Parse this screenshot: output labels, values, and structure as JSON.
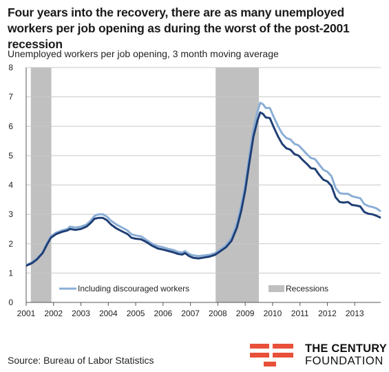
{
  "chart_data": {
    "type": "line",
    "title": "Four years into the recovery, there are as many unemployed workers per job opening as during the worst of the post-2001 recession",
    "subtitle": "Unemployed workers per job opening, 3 month moving average",
    "source": "Source: Bureau of Labor Statistics",
    "xlim": [
      2001,
      2013.95
    ],
    "ylim": [
      0,
      8
    ],
    "x_ticks": [
      "2001",
      "2002",
      "2003",
      "2004",
      "2005",
      "2006",
      "2007",
      "2008",
      "2009",
      "2010",
      "2011",
      "2012",
      "2013"
    ],
    "y_ticks": [
      "0",
      "1",
      "2",
      "3",
      "4",
      "5",
      "6",
      "7",
      "8"
    ],
    "grid": "horizontal",
    "legend_position": "bottom",
    "recessions": [
      {
        "start": 2001.17,
        "end": 2001.92
      },
      {
        "start": 2007.92,
        "end": 2009.5
      }
    ],
    "legend": {
      "discouraged_label": "Including discouraged workers",
      "recession_label": "Recessions"
    },
    "series": [
      {
        "color": "#8aaed6",
        "points": [
          [
            2001.0,
            1.27
          ],
          [
            2001.2,
            1.36
          ],
          [
            2001.4,
            1.5
          ],
          [
            2001.6,
            1.7
          ],
          [
            2001.75,
            2.0
          ],
          [
            2001.9,
            2.25
          ],
          [
            2002.1,
            2.38
          ],
          [
            2002.3,
            2.45
          ],
          [
            2002.5,
            2.5
          ],
          [
            2002.6,
            2.58
          ],
          [
            2002.8,
            2.55
          ],
          [
            2003.0,
            2.58
          ],
          [
            2003.2,
            2.65
          ],
          [
            2003.35,
            2.78
          ],
          [
            2003.5,
            2.95
          ],
          [
            2003.65,
            3.0
          ],
          [
            2003.8,
            3.0
          ],
          [
            2003.95,
            2.92
          ],
          [
            2004.1,
            2.78
          ],
          [
            2004.3,
            2.65
          ],
          [
            2004.5,
            2.55
          ],
          [
            2004.7,
            2.45
          ],
          [
            2004.85,
            2.32
          ],
          [
            2005.0,
            2.28
          ],
          [
            2005.2,
            2.25
          ],
          [
            2005.4,
            2.12
          ],
          [
            2005.6,
            2.0
          ],
          [
            2005.8,
            1.92
          ],
          [
            2006.0,
            1.88
          ],
          [
            2006.2,
            1.82
          ],
          [
            2006.4,
            1.78
          ],
          [
            2006.55,
            1.72
          ],
          [
            2006.7,
            1.7
          ],
          [
            2006.8,
            1.75
          ],
          [
            2006.95,
            1.65
          ],
          [
            2007.1,
            1.6
          ],
          [
            2007.3,
            1.58
          ],
          [
            2007.5,
            1.6
          ],
          [
            2007.7,
            1.62
          ],
          [
            2007.9,
            1.68
          ],
          [
            2008.1,
            1.8
          ],
          [
            2008.3,
            1.95
          ],
          [
            2008.5,
            2.2
          ],
          [
            2008.7,
            2.7
          ],
          [
            2008.85,
            3.3
          ],
          [
            2009.0,
            4.0
          ],
          [
            2009.15,
            5.0
          ],
          [
            2009.3,
            5.9
          ],
          [
            2009.45,
            6.5
          ],
          [
            2009.55,
            6.8
          ],
          [
            2009.65,
            6.75
          ],
          [
            2009.75,
            6.62
          ],
          [
            2009.9,
            6.62
          ],
          [
            2010.05,
            6.3
          ],
          [
            2010.2,
            6.0
          ],
          [
            2010.35,
            5.75
          ],
          [
            2010.5,
            5.6
          ],
          [
            2010.65,
            5.55
          ],
          [
            2010.8,
            5.4
          ],
          [
            2010.95,
            5.35
          ],
          [
            2011.1,
            5.2
          ],
          [
            2011.25,
            5.05
          ],
          [
            2011.4,
            4.92
          ],
          [
            2011.55,
            4.88
          ],
          [
            2011.7,
            4.7
          ],
          [
            2011.85,
            4.52
          ],
          [
            2012.0,
            4.45
          ],
          [
            2012.15,
            4.3
          ],
          [
            2012.3,
            3.9
          ],
          [
            2012.45,
            3.72
          ],
          [
            2012.6,
            3.7
          ],
          [
            2012.75,
            3.7
          ],
          [
            2012.9,
            3.62
          ],
          [
            2013.05,
            3.58
          ],
          [
            2013.2,
            3.55
          ],
          [
            2013.35,
            3.35
          ],
          [
            2013.5,
            3.28
          ],
          [
            2013.65,
            3.25
          ],
          [
            2013.8,
            3.2
          ],
          [
            2013.95,
            3.1
          ]
        ]
      },
      {
        "color": "#1f3f75",
        "points": [
          [
            2001.0,
            1.25
          ],
          [
            2001.2,
            1.33
          ],
          [
            2001.4,
            1.47
          ],
          [
            2001.6,
            1.68
          ],
          [
            2001.75,
            1.95
          ],
          [
            2001.9,
            2.2
          ],
          [
            2002.1,
            2.33
          ],
          [
            2002.3,
            2.4
          ],
          [
            2002.5,
            2.45
          ],
          [
            2002.6,
            2.5
          ],
          [
            2002.8,
            2.47
          ],
          [
            2003.0,
            2.5
          ],
          [
            2003.2,
            2.58
          ],
          [
            2003.35,
            2.7
          ],
          [
            2003.5,
            2.85
          ],
          [
            2003.65,
            2.88
          ],
          [
            2003.8,
            2.88
          ],
          [
            2003.95,
            2.8
          ],
          [
            2004.1,
            2.65
          ],
          [
            2004.3,
            2.52
          ],
          [
            2004.5,
            2.42
          ],
          [
            2004.7,
            2.33
          ],
          [
            2004.85,
            2.2
          ],
          [
            2005.0,
            2.17
          ],
          [
            2005.2,
            2.15
          ],
          [
            2005.4,
            2.05
          ],
          [
            2005.6,
            1.93
          ],
          [
            2005.8,
            1.84
          ],
          [
            2006.0,
            1.8
          ],
          [
            2006.2,
            1.75
          ],
          [
            2006.4,
            1.7
          ],
          [
            2006.55,
            1.65
          ],
          [
            2006.7,
            1.63
          ],
          [
            2006.8,
            1.68
          ],
          [
            2006.95,
            1.58
          ],
          [
            2007.1,
            1.52
          ],
          [
            2007.3,
            1.5
          ],
          [
            2007.5,
            1.53
          ],
          [
            2007.7,
            1.56
          ],
          [
            2007.9,
            1.62
          ],
          [
            2008.1,
            1.75
          ],
          [
            2008.3,
            1.88
          ],
          [
            2008.5,
            2.1
          ],
          [
            2008.7,
            2.55
          ],
          [
            2008.85,
            3.1
          ],
          [
            2009.0,
            3.8
          ],
          [
            2009.15,
            4.75
          ],
          [
            2009.3,
            5.65
          ],
          [
            2009.45,
            6.2
          ],
          [
            2009.55,
            6.47
          ],
          [
            2009.65,
            6.42
          ],
          [
            2009.75,
            6.3
          ],
          [
            2009.9,
            6.28
          ],
          [
            2010.05,
            5.95
          ],
          [
            2010.2,
            5.65
          ],
          [
            2010.35,
            5.4
          ],
          [
            2010.5,
            5.25
          ],
          [
            2010.65,
            5.2
          ],
          [
            2010.8,
            5.05
          ],
          [
            2010.95,
            5.0
          ],
          [
            2011.1,
            4.85
          ],
          [
            2011.25,
            4.72
          ],
          [
            2011.4,
            4.57
          ],
          [
            2011.55,
            4.55
          ],
          [
            2011.7,
            4.35
          ],
          [
            2011.85,
            4.18
          ],
          [
            2012.0,
            4.12
          ],
          [
            2012.15,
            3.97
          ],
          [
            2012.3,
            3.58
          ],
          [
            2012.45,
            3.42
          ],
          [
            2012.6,
            3.4
          ],
          [
            2012.75,
            3.42
          ],
          [
            2012.9,
            3.32
          ],
          [
            2013.05,
            3.3
          ],
          [
            2013.2,
            3.27
          ],
          [
            2013.35,
            3.08
          ],
          [
            2013.5,
            3.02
          ],
          [
            2013.65,
            3.0
          ],
          [
            2013.8,
            2.95
          ],
          [
            2013.95,
            2.88
          ]
        ]
      }
    ]
  },
  "logo": {
    "line1": "THE CENTURY",
    "line2": "FOUNDATION",
    "color": "#e8503a"
  }
}
